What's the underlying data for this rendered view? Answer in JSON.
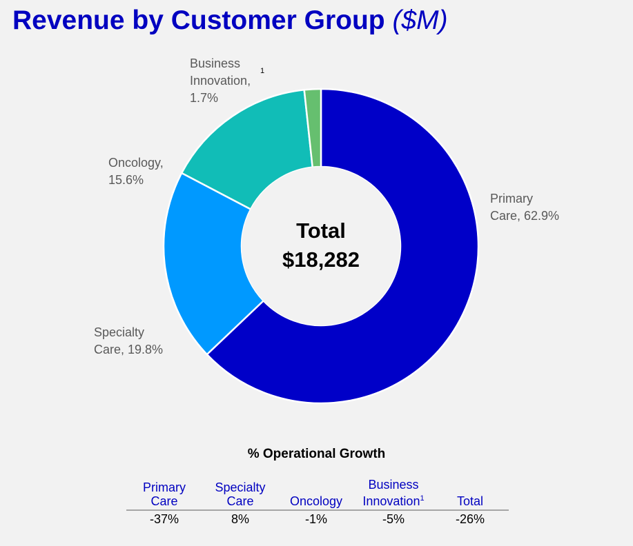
{
  "title": "Revenue by Customer Group",
  "title_unit": "($M)",
  "chart_data": {
    "type": "pie",
    "variant": "donut",
    "center_label": "Total",
    "center_value": "$18,282",
    "slices": [
      {
        "name": "Primary Care",
        "value": 62.9,
        "label_lines": [
          "Primary",
          "Care, 62.9%"
        ],
        "color": "#0000c8"
      },
      {
        "name": "Specialty Care",
        "value": 19.8,
        "label_lines": [
          "Specialty",
          "Care, 19.8%"
        ],
        "color": "#0099ff"
      },
      {
        "name": "Oncology",
        "value": 15.6,
        "label_lines": [
          "Oncology,",
          "15.6%"
        ],
        "color": "#11bdb7"
      },
      {
        "name": "Business Innovation",
        "value": 1.7,
        "label_lines": [
          "Business",
          "Innovation,",
          "1.7%"
        ],
        "footnote": "1",
        "color": "#66bf6f"
      }
    ]
  },
  "growth": {
    "title": "% Operational Growth",
    "columns": [
      {
        "header": [
          "Primary",
          "Care"
        ],
        "value": "-37%"
      },
      {
        "header": [
          "Specialty",
          "Care"
        ],
        "value": "8%"
      },
      {
        "header": [
          "Oncology"
        ],
        "value": "-1%"
      },
      {
        "header": [
          "Business",
          "Innovation"
        ],
        "footnote": "1",
        "value": "-5%"
      },
      {
        "header": [
          "Total"
        ],
        "value": "-26%"
      }
    ]
  },
  "colors": {
    "title": "#0000c0",
    "header_text": "#0000c0",
    "label_text": "#595959",
    "background": "#f2f2f2",
    "hole": "#f2f2f2"
  }
}
